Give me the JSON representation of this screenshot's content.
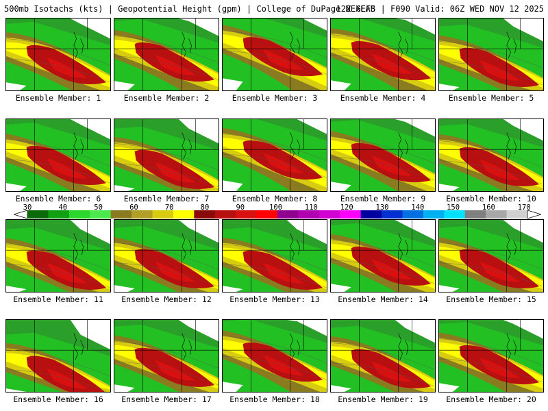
{
  "header": {
    "title_left": "500mb Isotachs (kts) | Geopotential Height (gpm) | College of DuPage NEXLAB",
    "title_right": "12Z GEFS | F090 Valid: 06Z WED NOV 12 2025"
  },
  "members": [
    {
      "label": "Ensemble Member: 1",
      "shift": 0
    },
    {
      "label": "Ensemble Member: 2",
      "shift": -4
    },
    {
      "label": "Ensemble Member: 3",
      "shift": -12
    },
    {
      "label": "Ensemble Member: 4",
      "shift": -6
    },
    {
      "label": "Ensemble Member: 5",
      "shift": 4
    },
    {
      "label": "Ensemble Member: 6",
      "shift": 0
    },
    {
      "label": "Ensemble Member: 7",
      "shift": 6
    },
    {
      "label": "Ensemble Member: 8",
      "shift": -8
    },
    {
      "label": "Ensemble Member: 9",
      "shift": -4
    },
    {
      "label": "Ensemble Member: 10",
      "shift": 2
    },
    {
      "label": "Ensemble Member: 11",
      "shift": 6
    },
    {
      "label": "Ensemble Member: 12",
      "shift": 4
    },
    {
      "label": "Ensemble Member: 13",
      "shift": 6
    },
    {
      "label": "Ensemble Member: 14",
      "shift": 0
    },
    {
      "label": "Ensemble Member: 15",
      "shift": 4
    },
    {
      "label": "Ensemble Member: 16",
      "shift": 14
    },
    {
      "label": "Ensemble Member: 17",
      "shift": 2
    },
    {
      "label": "Ensemble Member: 18",
      "shift": -6
    },
    {
      "label": "Ensemble Member: 19",
      "shift": 4
    },
    {
      "label": "Ensemble Member: 20",
      "shift": -2
    }
  ],
  "colorbar": {
    "ticks": [
      "30",
      "40",
      "50",
      "60",
      "70",
      "80",
      "90",
      "100",
      "110",
      "120",
      "130",
      "140",
      "150",
      "160",
      "170"
    ],
    "colors": [
      "#0a6a0a",
      "#11a011",
      "#2cd62c",
      "#4de84d",
      "#8a7a20",
      "#b0a028",
      "#d8cc10",
      "#ffff00",
      "#8a0a0a",
      "#b81010",
      "#d81010",
      "#ff0000",
      "#900090",
      "#b000b0",
      "#d000d0",
      "#ff00ff",
      "#0000a0",
      "#0030d0",
      "#0070e0",
      "#00b0f0",
      "#00e0ff",
      "#808080",
      "#a8a8a8",
      "#d0d0d0"
    ]
  }
}
